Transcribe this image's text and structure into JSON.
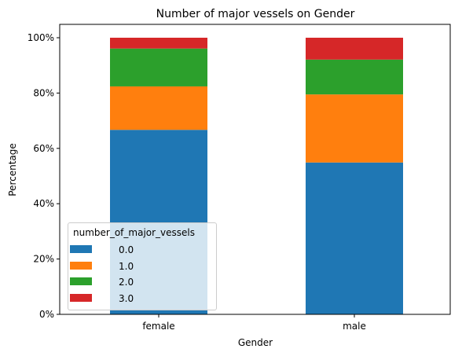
{
  "chart_data": {
    "type": "bar",
    "stacked": true,
    "title": "Number of major vessels on Gender",
    "xlabel": "Gender",
    "ylabel": "Percentage",
    "categories": [
      "female",
      "male"
    ],
    "ylim": [
      0,
      100
    ],
    "yticks": [
      "0%",
      "20%",
      "40%",
      "60%",
      "80%",
      "100%"
    ],
    "series": [
      {
        "name": "0.0",
        "color": "#1f77b4",
        "values": [
          66.7,
          54.9
        ]
      },
      {
        "name": "1.0",
        "color": "#ff7f0e",
        "values": [
          15.7,
          24.6
        ]
      },
      {
        "name": "2.0",
        "color": "#2ca02c",
        "values": [
          13.7,
          12.6
        ]
      },
      {
        "name": "3.0",
        "color": "#d62728",
        "values": [
          3.9,
          7.9
        ]
      }
    ],
    "legend": {
      "title": "number_of_major_vessels",
      "position": "lower-left"
    },
    "grid": false
  }
}
